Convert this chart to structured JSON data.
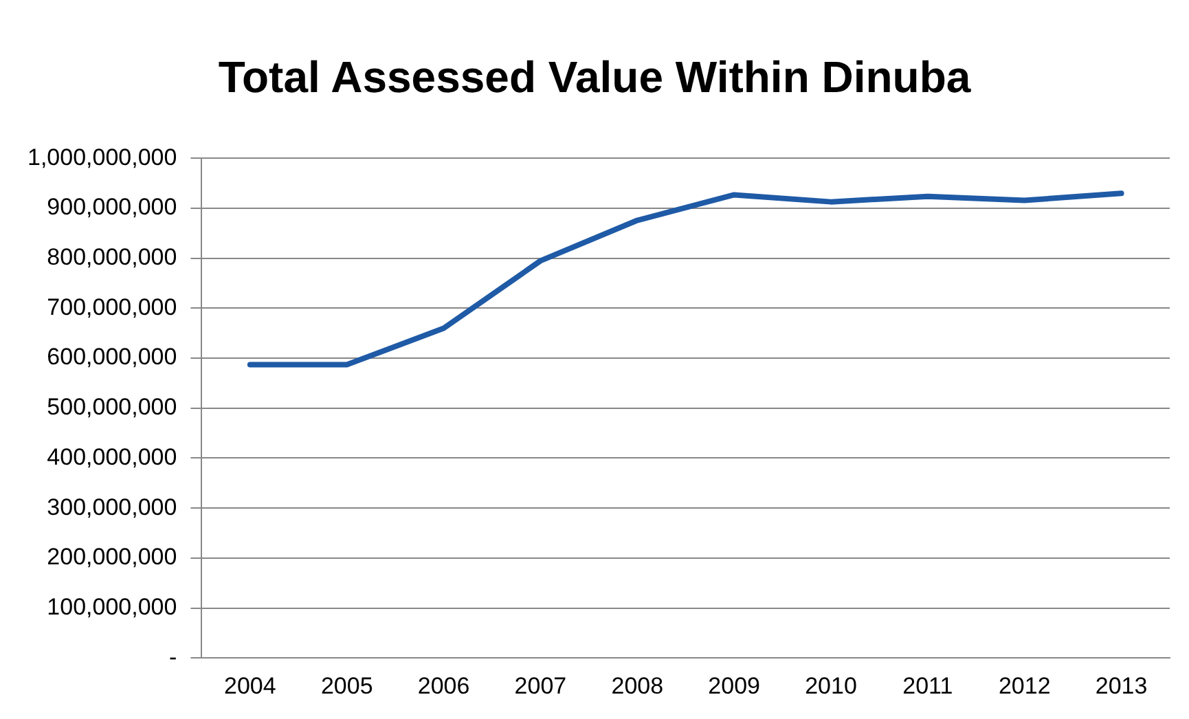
{
  "chart_data": {
    "type": "line",
    "title": "Total Assessed Value Within Dinuba",
    "categories": [
      "2004",
      "2005",
      "2006",
      "2007",
      "2008",
      "2009",
      "2010",
      "2011",
      "2012",
      "2013"
    ],
    "series": [
      {
        "color": "#1f5aa6",
        "values": [
          587000000,
          587000000,
          660000000,
          795000000,
          876000000,
          927000000,
          913000000,
          924000000,
          916000000,
          930000000
        ]
      }
    ],
    "ylim": [
      0,
      1000000000
    ],
    "yticks": [
      {
        "value": 0,
        "label": "-"
      },
      {
        "value": 100000000,
        "label": "100,000,000"
      },
      {
        "value": 200000000,
        "label": "200,000,000"
      },
      {
        "value": 300000000,
        "label": "300,000,000"
      },
      {
        "value": 400000000,
        "label": "400,000,000"
      },
      {
        "value": 500000000,
        "label": "500,000,000"
      },
      {
        "value": 600000000,
        "label": "600,000,000"
      },
      {
        "value": 700000000,
        "label": "700,000,000"
      },
      {
        "value": 800000000,
        "label": "800,000,000"
      },
      {
        "value": 900000000,
        "label": "900,000,000"
      },
      {
        "value": 1000000000,
        "label": "1,000,000,000"
      }
    ],
    "grid": "y",
    "marker": "none",
    "line_style": "solid"
  }
}
